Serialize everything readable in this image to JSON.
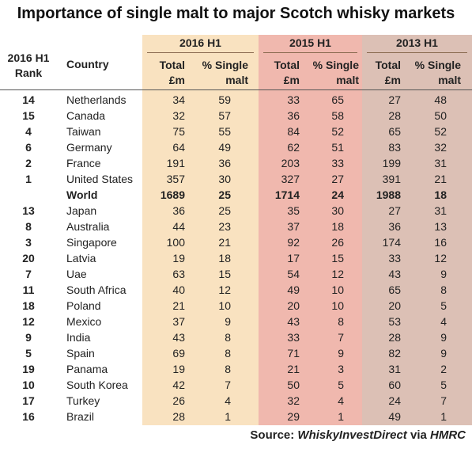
{
  "chart_data": {
    "type": "table",
    "title": "Importance of single malt to major Scotch whisky markets",
    "group_headers": [
      "2016 H1",
      "2015 H1",
      "2013 H1"
    ],
    "column_headers": {
      "rank": [
        "2016 H1",
        "Rank"
      ],
      "country": "Country",
      "total": [
        "Total",
        "£m"
      ],
      "single": [
        "% Single",
        "malt"
      ]
    },
    "rows": [
      {
        "rank": "14",
        "country": "Netherlands",
        "values": [
          34,
          59,
          33,
          65,
          27,
          48
        ]
      },
      {
        "rank": "15",
        "country": "Canada",
        "values": [
          32,
          57,
          36,
          58,
          28,
          50
        ]
      },
      {
        "rank": "4",
        "country": "Taiwan",
        "values": [
          75,
          55,
          84,
          52,
          65,
          52
        ]
      },
      {
        "rank": "6",
        "country": "Germany",
        "values": [
          64,
          49,
          62,
          51,
          83,
          32
        ]
      },
      {
        "rank": "2",
        "country": "France",
        "values": [
          191,
          36,
          203,
          33,
          199,
          31
        ]
      },
      {
        "rank": "1",
        "country": "United States",
        "values": [
          357,
          30,
          327,
          27,
          391,
          21
        ]
      },
      {
        "rank": "",
        "country": "World",
        "values": [
          1689,
          25,
          1714,
          24,
          1988,
          18
        ],
        "bold": true
      },
      {
        "rank": "13",
        "country": "Japan",
        "values": [
          36,
          25,
          35,
          30,
          27,
          31
        ]
      },
      {
        "rank": "8",
        "country": "Australia",
        "values": [
          44,
          23,
          37,
          18,
          36,
          13
        ]
      },
      {
        "rank": "3",
        "country": "Singapore",
        "values": [
          100,
          21,
          92,
          26,
          174,
          16
        ]
      },
      {
        "rank": "20",
        "country": "Latvia",
        "values": [
          19,
          18,
          17,
          15,
          33,
          12
        ]
      },
      {
        "rank": "7",
        "country": "Uae",
        "values": [
          63,
          15,
          54,
          12,
          43,
          9
        ]
      },
      {
        "rank": "11",
        "country": "South Africa",
        "values": [
          40,
          12,
          49,
          10,
          65,
          8
        ]
      },
      {
        "rank": "18",
        "country": "Poland",
        "values": [
          21,
          10,
          20,
          10,
          20,
          5
        ]
      },
      {
        "rank": "12",
        "country": "Mexico",
        "values": [
          37,
          9,
          43,
          8,
          53,
          4
        ]
      },
      {
        "rank": "9",
        "country": "India",
        "values": [
          43,
          8,
          33,
          7,
          28,
          9
        ]
      },
      {
        "rank": "5",
        "country": "Spain",
        "values": [
          69,
          8,
          71,
          9,
          82,
          9
        ]
      },
      {
        "rank": "19",
        "country": "Panama",
        "values": [
          19,
          8,
          21,
          3,
          31,
          2
        ]
      },
      {
        "rank": "10",
        "country": "South Korea",
        "values": [
          42,
          7,
          50,
          5,
          60,
          5
        ]
      },
      {
        "rank": "17",
        "country": "Turkey",
        "values": [
          26,
          4,
          32,
          4,
          24,
          7
        ]
      },
      {
        "rank": "16",
        "country": "Brazil",
        "values": [
          28,
          1,
          29,
          1,
          49,
          1
        ]
      }
    ],
    "colors": {
      "band_2016": "#f9e2c0",
      "band_2015": "#f0b8ae",
      "band_2013": "#dcc0b5"
    }
  },
  "source": {
    "prefix": "Source: ",
    "name": "WhiskyInvestDirect",
    "middle": " via ",
    "origin": "HMRC"
  }
}
